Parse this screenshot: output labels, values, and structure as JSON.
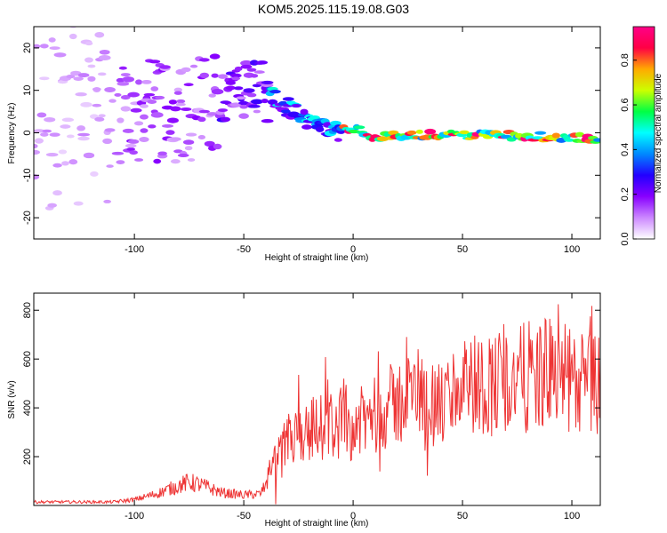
{
  "title": "KOM5.2025.115.19.08.G03",
  "chart_data": [
    {
      "type": "heatmap",
      "xlabel": "Height of straight line (km)",
      "ylabel": "Frequency (Hz)",
      "xlim": [
        -146,
        113
      ],
      "ylim": [
        -25,
        25
      ],
      "xticks": [
        -100,
        -50,
        0,
        50,
        100
      ],
      "yticks": [
        -20,
        -10,
        0,
        10,
        20
      ],
      "colorbar": {
        "label": "Normalized spectral amplitude",
        "range": [
          0,
          0.95
        ],
        "ticks": [
          0.0,
          0.2,
          0.4,
          0.6,
          0.8
        ],
        "tick_labels": [
          "0.0",
          "0.2",
          "0.4",
          "0.6",
          "0.8"
        ],
        "colormap": [
          "#ffffff",
          "#cc88ff",
          "#8800ff",
          "#2200ff",
          "#0088ff",
          "#00ffff",
          "#00ff44",
          "#ccff00",
          "#ffaa00",
          "#ff0044",
          "#ff0088"
        ]
      },
      "ridge": {
        "x": [
          -146,
          -120,
          -100,
          -80,
          -60,
          -50,
          -45,
          -40,
          -35,
          -30,
          -25,
          -20,
          -15,
          -10,
          -5,
          0,
          5,
          10,
          20,
          40,
          60,
          80,
          100,
          113
        ],
        "y": [
          4,
          4,
          5,
          5,
          7,
          10,
          11,
          10,
          8,
          6,
          4,
          3,
          1,
          0.5,
          0.5,
          1,
          0,
          -1,
          -0.5,
          -0.5,
          -0.5,
          -0.8,
          -1.2,
          -1.5
        ]
      }
    },
    {
      "type": "line",
      "xlabel": "Height of straight line (km)",
      "ylabel": "SNR (v/v)",
      "xlim": [
        -146,
        113
      ],
      "ylim": [
        0,
        870
      ],
      "xticks": [
        -100,
        -50,
        0,
        50,
        100
      ],
      "yticks": [
        200,
        400,
        600,
        800
      ],
      "color": "#ee3333",
      "envelope": {
        "x": [
          -146,
          -110,
          -100,
          -90,
          -80,
          -75,
          -70,
          -60,
          -50,
          -42,
          -38,
          -30,
          -20,
          -10,
          0,
          10,
          20,
          30,
          40,
          50,
          60,
          70,
          80,
          90,
          100,
          113
        ],
        "y": [
          15,
          15,
          25,
          50,
          85,
          100,
          90,
          55,
          45,
          50,
          140,
          270,
          320,
          340,
          330,
          380,
          430,
          480,
          410,
          520,
          510,
          520,
          540,
          560,
          520,
          500
        ]
      }
    }
  ]
}
